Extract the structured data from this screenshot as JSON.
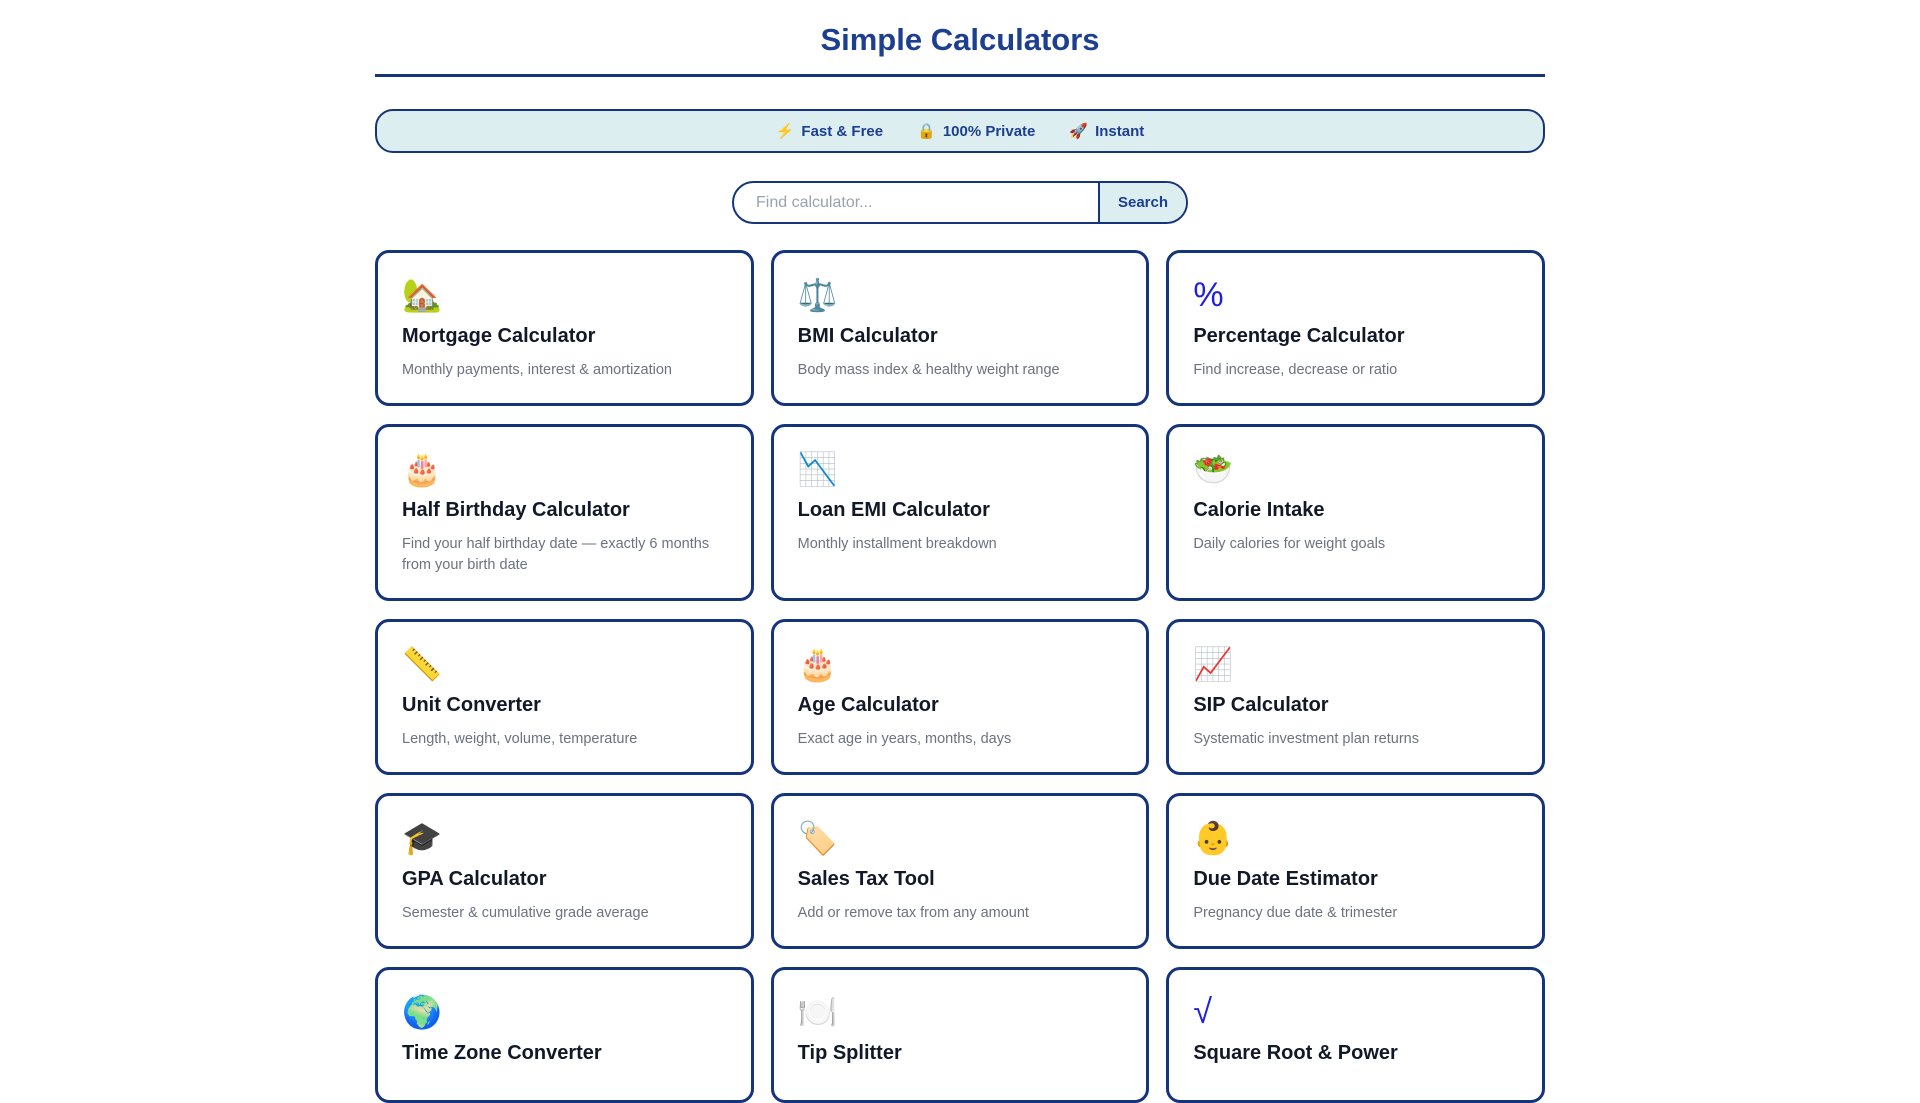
{
  "page": {
    "title": "Simple Calculators"
  },
  "banner": {
    "badges": [
      {
        "icon": "⚡",
        "icon_name": "lightning-icon",
        "label": "Fast & Free"
      },
      {
        "icon": "🔒",
        "icon_name": "lock-icon",
        "label": "100% Private"
      },
      {
        "icon": "🚀",
        "icon_name": "rocket-icon",
        "label": "Instant"
      }
    ]
  },
  "search": {
    "placeholder": "Find calculator...",
    "button_label": "Search"
  },
  "colors": {
    "navy_border": "#14357c",
    "navy_text": "#1c3f8f",
    "teal_background": "#ddeef1",
    "blue_icon": "#1f1fe0",
    "title_ink": "#111827",
    "description_gray": "#6b7280"
  },
  "cards": [
    {
      "icon": "🏡",
      "icon_type": "emoji",
      "icon_name": "house-icon",
      "title": "Mortgage Calculator",
      "desc": "Monthly payments, interest & amortization"
    },
    {
      "icon": "⚖️",
      "icon_type": "emoji",
      "icon_name": "balance-scale-icon",
      "title": "BMI Calculator",
      "desc": "Body mass index & healthy weight range"
    },
    {
      "icon": "%",
      "icon_type": "text",
      "icon_name": "percent-icon",
      "title": "Percentage Calculator",
      "desc": "Find increase, decrease or ratio"
    },
    {
      "icon": "🎂",
      "icon_type": "emoji",
      "icon_name": "birthday-cake-icon",
      "title": "Half Birthday Calculator",
      "desc": "Find your half birthday date — exactly 6 months from your birth date"
    },
    {
      "icon": "📉",
      "icon_type": "emoji",
      "icon_name": "chart-decreasing-icon",
      "title": "Loan EMI Calculator",
      "desc": "Monthly installment breakdown"
    },
    {
      "icon": "🥗",
      "icon_type": "emoji",
      "icon_name": "salad-icon",
      "title": "Calorie Intake",
      "desc": "Daily calories for weight goals"
    },
    {
      "icon": "📏",
      "icon_type": "emoji",
      "icon_name": "ruler-icon",
      "title": "Unit Converter",
      "desc": "Length, weight, volume, temperature"
    },
    {
      "icon": "🎂",
      "icon_type": "emoji",
      "icon_name": "birthday-cake-icon",
      "title": "Age Calculator",
      "desc": "Exact age in years, months, days"
    },
    {
      "icon": "📈",
      "icon_type": "emoji",
      "icon_name": "chart-increasing-icon",
      "title": "SIP Calculator",
      "desc": "Systematic investment plan returns"
    },
    {
      "icon": "🎓",
      "icon_type": "emoji",
      "icon_name": "graduation-cap-icon",
      "title": "GPA Calculator",
      "desc": "Semester & cumulative grade average"
    },
    {
      "icon": "🏷️",
      "icon_type": "emoji",
      "icon_name": "label-tag-icon",
      "title": "Sales Tax Tool",
      "desc": "Add or remove tax from any amount"
    },
    {
      "icon": "👶",
      "icon_type": "emoji",
      "icon_name": "baby-icon",
      "title": "Due Date Estimator",
      "desc": "Pregnancy due date & trimester"
    },
    {
      "icon": "🌍",
      "icon_type": "emoji",
      "icon_name": "globe-icon",
      "title": "Time Zone Converter",
      "desc": ""
    },
    {
      "icon": "🍽️",
      "icon_type": "emoji",
      "icon_name": "fork-knife-plate-icon",
      "title": "Tip Splitter",
      "desc": ""
    },
    {
      "icon": "√",
      "icon_type": "text",
      "icon_name": "square-root-icon",
      "title": "Square Root & Power",
      "desc": ""
    }
  ]
}
